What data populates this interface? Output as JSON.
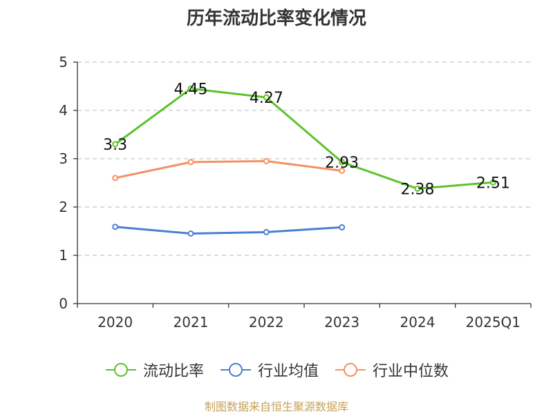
{
  "chart_data": {
    "type": "line",
    "title": "历年流动比率变化情况",
    "categories": [
      "2020",
      "2021",
      "2022",
      "2023",
      "2024",
      "2025Q1"
    ],
    "ylim": [
      0,
      5
    ],
    "yticks": [
      "0",
      "1",
      "2",
      "3",
      "4",
      "5"
    ],
    "grid": true,
    "legend_position": "bottom",
    "series": [
      {
        "name": "流动比率",
        "color": "#5cc22a",
        "values": [
          3.3,
          4.45,
          4.27,
          2.93,
          2.38,
          2.51
        ],
        "labels": [
          "3.3",
          "4.45",
          "4.27",
          "2.93",
          "2.38",
          "2.51"
        ],
        "show_labels": true
      },
      {
        "name": "行业均值",
        "color": "#4a7fd4",
        "values": [
          1.59,
          1.45,
          1.48,
          1.58,
          null,
          null
        ],
        "show_labels": false
      },
      {
        "name": "行业中位数",
        "color": "#f59062",
        "values": [
          2.6,
          2.93,
          2.95,
          2.75,
          null,
          null
        ],
        "show_labels": false
      }
    ]
  },
  "source": "制图数据来自恒生聚源数据库"
}
